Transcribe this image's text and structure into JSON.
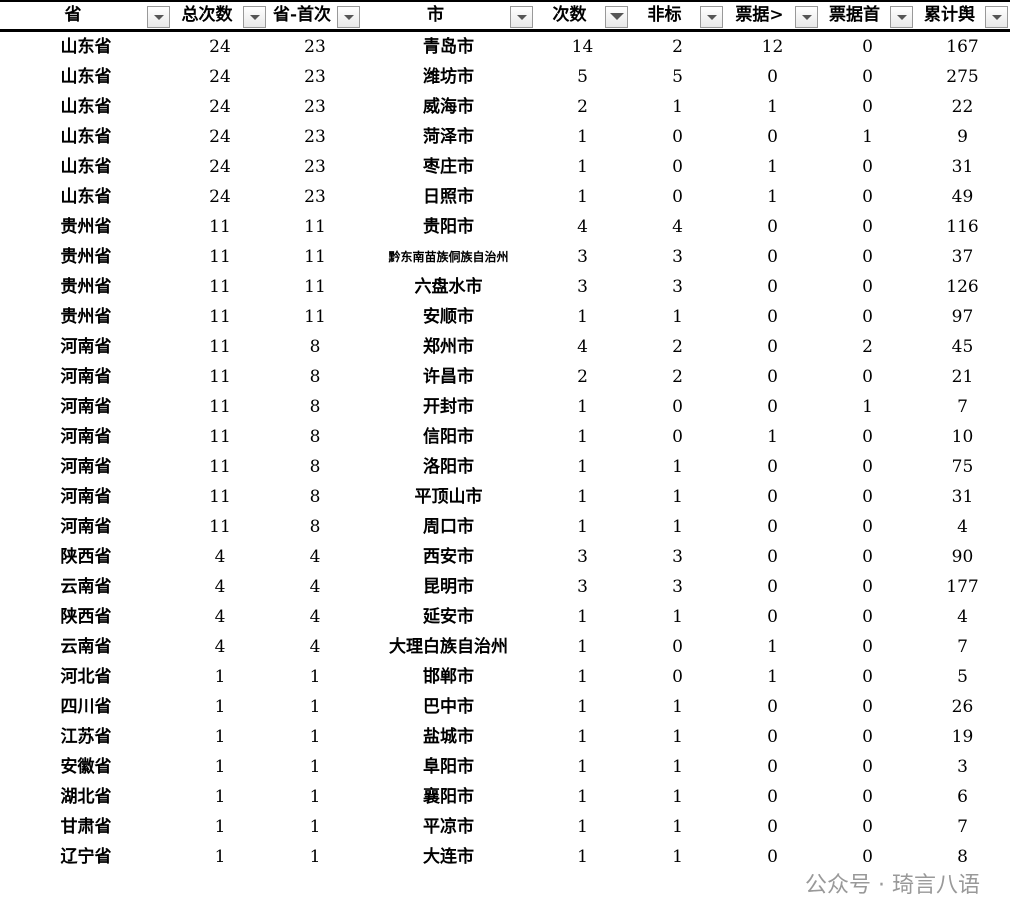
{
  "headers": [
    "省",
    "总次数",
    "省-首次",
    "市",
    "次数",
    "非标",
    "票据>",
    "票据首",
    "累计舆"
  ],
  "filter_active_column": 4,
  "rows": [
    [
      "山东省",
      "24",
      "23",
      "青岛市",
      "14",
      "2",
      "12",
      "0",
      "167"
    ],
    [
      "山东省",
      "24",
      "23",
      "潍坊市",
      "5",
      "5",
      "0",
      "0",
      "275"
    ],
    [
      "山东省",
      "24",
      "23",
      "威海市",
      "2",
      "1",
      "1",
      "0",
      "22"
    ],
    [
      "山东省",
      "24",
      "23",
      "菏泽市",
      "1",
      "0",
      "0",
      "1",
      "9"
    ],
    [
      "山东省",
      "24",
      "23",
      "枣庄市",
      "1",
      "0",
      "1",
      "0",
      "31"
    ],
    [
      "山东省",
      "24",
      "23",
      "日照市",
      "1",
      "0",
      "1",
      "0",
      "49"
    ],
    [
      "贵州省",
      "11",
      "11",
      "贵阳市",
      "4",
      "4",
      "0",
      "0",
      "116"
    ],
    [
      "贵州省",
      "11",
      "11",
      "黔东南苗族侗族自治州",
      "3",
      "3",
      "0",
      "0",
      "37"
    ],
    [
      "贵州省",
      "11",
      "11",
      "六盘水市",
      "3",
      "3",
      "0",
      "0",
      "126"
    ],
    [
      "贵州省",
      "11",
      "11",
      "安顺市",
      "1",
      "1",
      "0",
      "0",
      "97"
    ],
    [
      "河南省",
      "11",
      "8",
      "郑州市",
      "4",
      "2",
      "0",
      "2",
      "45"
    ],
    [
      "河南省",
      "11",
      "8",
      "许昌市",
      "2",
      "2",
      "0",
      "0",
      "21"
    ],
    [
      "河南省",
      "11",
      "8",
      "开封市",
      "1",
      "0",
      "0",
      "1",
      "7"
    ],
    [
      "河南省",
      "11",
      "8",
      "信阳市",
      "1",
      "0",
      "1",
      "0",
      "10"
    ],
    [
      "河南省",
      "11",
      "8",
      "洛阳市",
      "1",
      "1",
      "0",
      "0",
      "75"
    ],
    [
      "河南省",
      "11",
      "8",
      "平顶山市",
      "1",
      "1",
      "0",
      "0",
      "31"
    ],
    [
      "河南省",
      "11",
      "8",
      "周口市",
      "1",
      "1",
      "0",
      "0",
      "4"
    ],
    [
      "陕西省",
      "4",
      "4",
      "西安市",
      "3",
      "3",
      "0",
      "0",
      "90"
    ],
    [
      "云南省",
      "4",
      "4",
      "昆明市",
      "3",
      "3",
      "0",
      "0",
      "177"
    ],
    [
      "陕西省",
      "4",
      "4",
      "延安市",
      "1",
      "1",
      "0",
      "0",
      "4"
    ],
    [
      "云南省",
      "4",
      "4",
      "大理白族自治州",
      "1",
      "0",
      "1",
      "0",
      "7"
    ],
    [
      "河北省",
      "1",
      "1",
      "邯郸市",
      "1",
      "0",
      "1",
      "0",
      "5"
    ],
    [
      "四川省",
      "1",
      "1",
      "巴中市",
      "1",
      "1",
      "0",
      "0",
      "26"
    ],
    [
      "江苏省",
      "1",
      "1",
      "盐城市",
      "1",
      "1",
      "0",
      "0",
      "19"
    ],
    [
      "安徽省",
      "1",
      "1",
      "阜阳市",
      "1",
      "1",
      "0",
      "0",
      "3"
    ],
    [
      "湖北省",
      "1",
      "1",
      "襄阳市",
      "1",
      "1",
      "0",
      "0",
      "6"
    ],
    [
      "甘肃省",
      "1",
      "1",
      "平凉市",
      "1",
      "1",
      "0",
      "0",
      "7"
    ],
    [
      "辽宁省",
      "1",
      "1",
      "大连市",
      "1",
      "1",
      "0",
      "0",
      "8"
    ]
  ],
  "watermark": "公众号 · 琦言八语"
}
